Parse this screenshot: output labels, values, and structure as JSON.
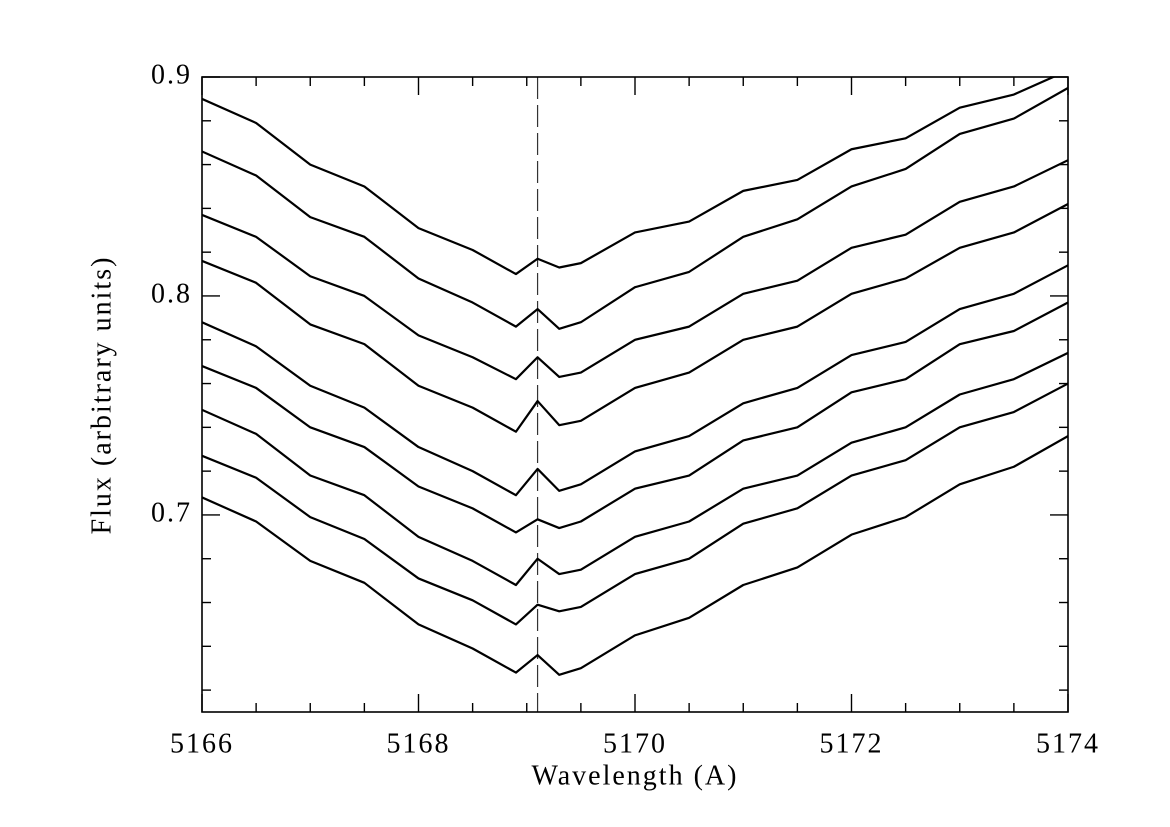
{
  "chart_data": {
    "type": "line",
    "xlabel": "Wavelength (A)",
    "ylabel": "Flux (arbitrary units)",
    "x": [
      5166,
      5166.5,
      5167,
      5167.5,
      5168,
      5168.5,
      5168.9,
      5169.1,
      5169.3,
      5169.5,
      5170,
      5170.5,
      5171,
      5171.5,
      5172,
      5172.5,
      5173,
      5173.5,
      5174
    ],
    "series": [
      {
        "color": "#000000",
        "values": [
          0.89,
          0.879,
          0.86,
          0.85,
          0.831,
          0.821,
          0.81,
          0.817,
          0.813,
          0.815,
          0.829,
          0.834,
          0.848,
          0.853,
          0.867,
          0.872,
          0.886,
          0.892,
          0.903
        ]
      },
      {
        "color": "#000000",
        "values": [
          0.866,
          0.855,
          0.836,
          0.827,
          0.808,
          0.797,
          0.786,
          0.794,
          0.785,
          0.788,
          0.804,
          0.811,
          0.827,
          0.835,
          0.85,
          0.858,
          0.874,
          0.881,
          0.895
        ]
      },
      {
        "color": "#000000",
        "values": [
          0.837,
          0.827,
          0.809,
          0.8,
          0.782,
          0.772,
          0.762,
          0.772,
          0.763,
          0.765,
          0.78,
          0.786,
          0.801,
          0.807,
          0.822,
          0.828,
          0.843,
          0.85,
          0.862
        ]
      },
      {
        "color": "#000000",
        "values": [
          0.816,
          0.806,
          0.787,
          0.778,
          0.759,
          0.749,
          0.738,
          0.752,
          0.741,
          0.743,
          0.758,
          0.765,
          0.78,
          0.786,
          0.801,
          0.808,
          0.822,
          0.829,
          0.842
        ]
      },
      {
        "color": "#000000",
        "values": [
          0.788,
          0.777,
          0.759,
          0.749,
          0.731,
          0.72,
          0.709,
          0.721,
          0.711,
          0.714,
          0.729,
          0.736,
          0.751,
          0.758,
          0.773,
          0.779,
          0.794,
          0.801,
          0.814
        ]
      },
      {
        "color": "#000000",
        "values": [
          0.768,
          0.758,
          0.74,
          0.731,
          0.713,
          0.703,
          0.692,
          0.698,
          0.694,
          0.697,
          0.712,
          0.718,
          0.734,
          0.74,
          0.756,
          0.762,
          0.778,
          0.784,
          0.797
        ]
      },
      {
        "color": "#000000",
        "values": [
          0.748,
          0.737,
          0.718,
          0.709,
          0.69,
          0.679,
          0.668,
          0.68,
          0.673,
          0.675,
          0.69,
          0.697,
          0.712,
          0.718,
          0.733,
          0.74,
          0.755,
          0.762,
          0.774
        ]
      },
      {
        "color": "#000000",
        "values": [
          0.727,
          0.717,
          0.699,
          0.689,
          0.671,
          0.661,
          0.65,
          0.659,
          0.656,
          0.658,
          0.673,
          0.68,
          0.696,
          0.703,
          0.718,
          0.725,
          0.74,
          0.747,
          0.76
        ]
      },
      {
        "color": "#000000",
        "values": [
          0.708,
          0.697,
          0.679,
          0.669,
          0.65,
          0.639,
          0.628,
          0.636,
          0.627,
          0.63,
          0.645,
          0.653,
          0.668,
          0.676,
          0.691,
          0.699,
          0.714,
          0.722,
          0.736
        ]
      }
    ],
    "xlim": [
      5166,
      5174
    ],
    "xticks": [
      5166,
      5168,
      5170,
      5172,
      5174
    ],
    "xminorticks": [
      5166.5,
      5167,
      5167.5,
      5168.5,
      5169,
      5169.5,
      5170.5,
      5171,
      5171.5,
      5172.5,
      5173,
      5173.5
    ],
    "ylim": [
      0.61,
      0.9
    ],
    "yticks": [
      0.7,
      0.8,
      0.9
    ],
    "yminorticks": [
      0.62,
      0.64,
      0.66,
      0.68,
      0.72,
      0.74,
      0.76,
      0.78,
      0.82,
      0.84,
      0.86,
      0.88
    ],
    "vline": 5169.1,
    "grid": false
  }
}
